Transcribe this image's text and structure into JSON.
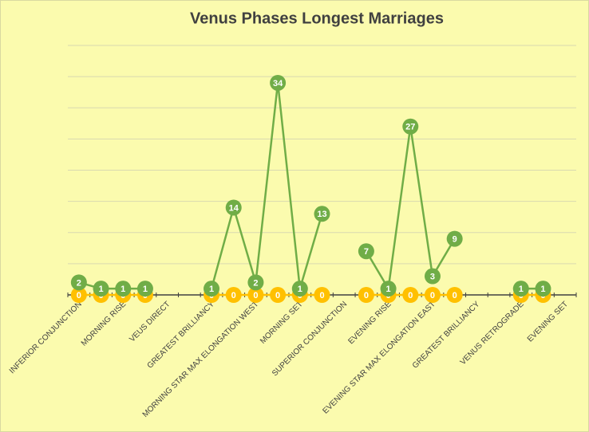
{
  "chart_data": {
    "type": "line",
    "title": "Venus Phases Longest Marriages",
    "categories": [
      "INFERIOR CONJUNCTION",
      null,
      "MORNING RISE",
      null,
      "VEUS DIRECT",
      null,
      "GREATEST BRILLIANCY",
      null,
      "MORNING STAR MAX ELONGATION WEST",
      null,
      "MORNING SET",
      null,
      "SUPERIOR CONJUNCTION",
      null,
      "EVENING RISE",
      null,
      "EVENING STAR MAX ELONGATION EAST",
      null,
      "GREATEST BRILLIANCY",
      null,
      "VENUS RETROGRADE",
      null,
      "EVENING SET"
    ],
    "series": [
      {
        "color": "#ffc000",
        "values": [
          0,
          0,
          0,
          0,
          null,
          null,
          0,
          0,
          0,
          0,
          0,
          0,
          null,
          0,
          0,
          0,
          0,
          0,
          null,
          null,
          0,
          0,
          null
        ]
      },
      {
        "color": "#70ad47",
        "values": [
          2,
          1,
          1,
          1,
          null,
          null,
          1,
          14,
          2,
          34,
          1,
          13,
          null,
          7,
          1,
          27,
          3,
          9,
          null,
          null,
          1,
          1,
          null
        ]
      }
    ],
    "ylim": [
      0,
      40
    ],
    "yticks": [
      0,
      5,
      10,
      15,
      20,
      25,
      30,
      35,
      40
    ],
    "grid": true
  }
}
